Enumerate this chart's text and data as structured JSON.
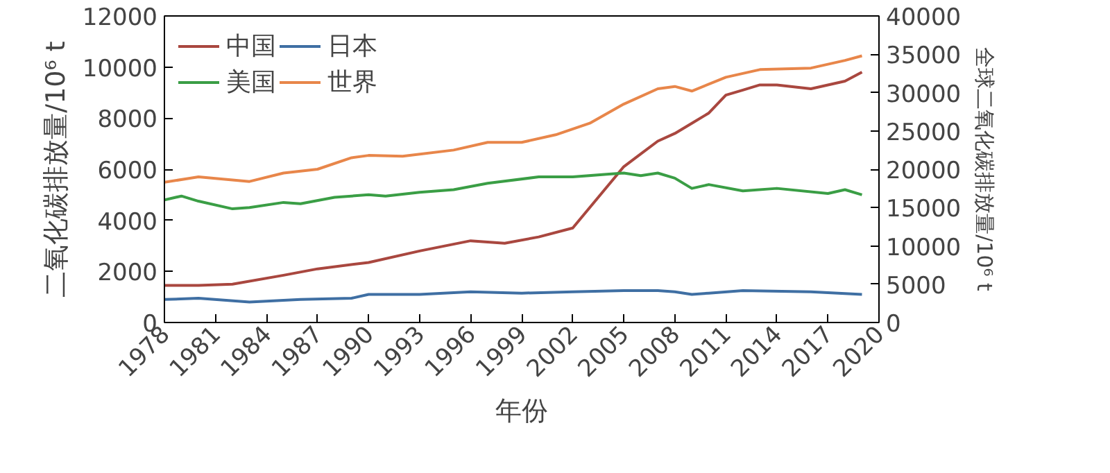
{
  "chart_data": {
    "type": "line",
    "xlabel": "年份",
    "ylabel": "二氧化碳排放量/10⁶ t",
    "y2label": "全球二氧化碳排放量/10⁶ t",
    "xlim": [
      1978,
      2020
    ],
    "xticks": [
      1978,
      1981,
      1984,
      1987,
      1990,
      1993,
      1996,
      1999,
      2002,
      2005,
      2008,
      2011,
      2014,
      2017,
      2020
    ],
    "ylim": [
      0,
      12000
    ],
    "yticks": [
      0,
      2000,
      4000,
      6000,
      8000,
      10000,
      12000
    ],
    "y2lim": [
      0,
      40000
    ],
    "y2ticks": [
      0,
      5000,
      10000,
      15000,
      20000,
      25000,
      30000,
      35000,
      40000
    ],
    "grid": false,
    "legend": "top left",
    "line_style": "solid",
    "series": [
      {
        "name": "中国",
        "color": "#a9473f",
        "x": [
          1978,
          1980,
          1982,
          1985,
          1987,
          1990,
          1993,
          1996,
          1998,
          2000,
          2002,
          2003,
          2004,
          2005,
          2006,
          2007,
          2008,
          2009,
          2010,
          2011,
          2012,
          2013,
          2014,
          2016,
          2018,
          2019
        ],
        "values": [
          1450,
          1450,
          1500,
          1850,
          2100,
          2350,
          2800,
          3200,
          3100,
          3350,
          3700,
          4500,
          5300,
          6100,
          6600,
          7100,
          7400,
          7800,
          8200,
          8900,
          9100,
          9300,
          9300,
          9150,
          9450,
          9800
        ]
      },
      {
        "name": "日本",
        "color": "#3f6fa3",
        "x": [
          1978,
          1980,
          1983,
          1986,
          1989,
          1990,
          1993,
          1996,
          1999,
          2002,
          2005,
          2007,
          2008,
          2009,
          2010,
          2012,
          2016,
          2019
        ],
        "values": [
          900,
          950,
          800,
          900,
          950,
          1100,
          1100,
          1200,
          1150,
          1200,
          1250,
          1250,
          1200,
          1100,
          1150,
          1250,
          1200,
          1100
        ]
      },
      {
        "name": "美国",
        "color": "#3a9e45",
        "x": [
          1978,
          1979,
          1980,
          1982,
          1983,
          1985,
          1986,
          1988,
          1990,
          1991,
          1993,
          1995,
          1997,
          2000,
          2002,
          2004,
          2005,
          2006,
          2007,
          2008,
          2009,
          2010,
          2012,
          2014,
          2017,
          2018,
          2019
        ],
        "values": [
          4800,
          4950,
          4750,
          4450,
          4500,
          4700,
          4650,
          4900,
          5000,
          4950,
          5100,
          5200,
          5450,
          5700,
          5700,
          5800,
          5850,
          5750,
          5850,
          5650,
          5250,
          5400,
          5150,
          5250,
          5050,
          5200,
          5000
        ]
      },
      {
        "name": "世界",
        "color": "#e8864a",
        "axis": "y2",
        "x": [
          1978,
          1980,
          1982,
          1983,
          1985,
          1987,
          1989,
          1990,
          1992,
          1995,
          1997,
          1999,
          2001,
          2003,
          2005,
          2007,
          2008,
          2009,
          2011,
          2013,
          2016,
          2018,
          2019
        ],
        "values": [
          18300,
          19000,
          18600,
          18400,
          19500,
          20000,
          21500,
          21800,
          21700,
          22500,
          23500,
          23500,
          24500,
          26000,
          28500,
          30500,
          30800,
          30200,
          32000,
          33000,
          33200,
          34200,
          34800
        ]
      }
    ]
  }
}
